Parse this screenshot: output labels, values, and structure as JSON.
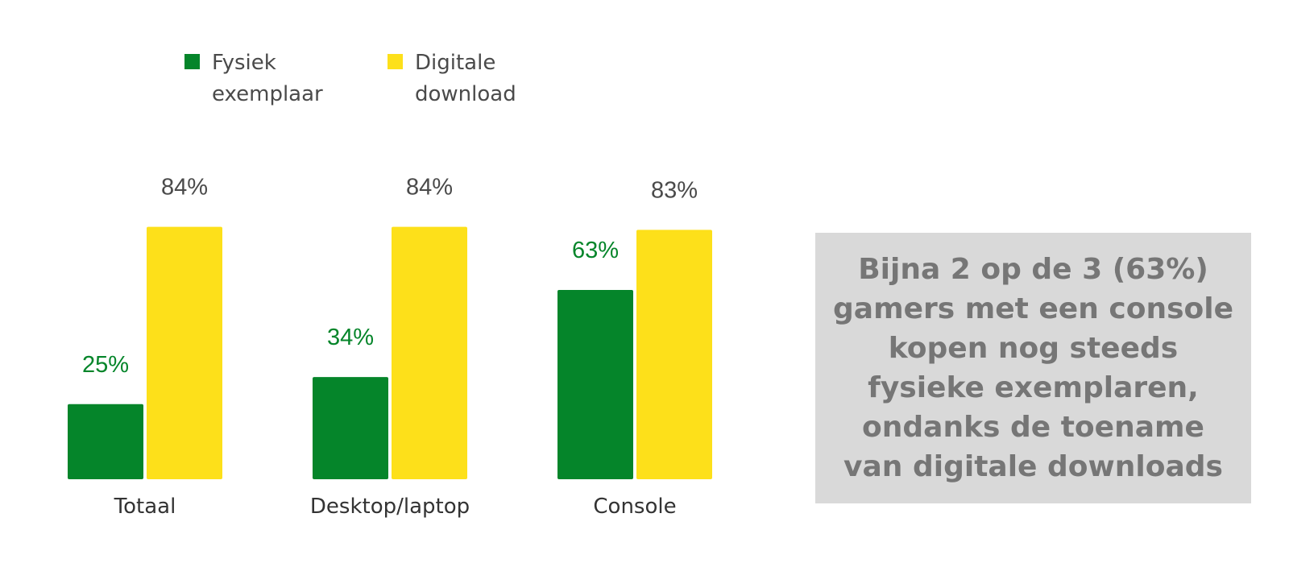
{
  "chart_data": {
    "type": "bar",
    "categories": [
      "Totaal",
      "Desktop/laptop",
      "Console"
    ],
    "series": [
      {
        "name": "Fysiek exemplaar",
        "name_lines": [
          "Fysiek",
          "exemplaar"
        ],
        "values": [
          25,
          34,
          63
        ],
        "labels": [
          "25%",
          "34%",
          "63%"
        ],
        "color": "#05852a",
        "label_color": "#05852a"
      },
      {
        "name": "Digitale download",
        "name_lines": [
          "Digitale",
          "download"
        ],
        "values": [
          84,
          84,
          83
        ],
        "labels": [
          "84%",
          "84%",
          "83%"
        ],
        "color": "#fde01a",
        "label_color": "#4a4a4a"
      }
    ],
    "ylim": [
      0,
      100
    ],
    "grid": false,
    "legend_position": "top-left"
  },
  "callout": {
    "lines": [
      "Bijna 2 op de 3 (63%)",
      "gamers met een console",
      "kopen nog steeds",
      "fysieke exemplaren,",
      "ondanks de toename",
      "van digitale downloads"
    ]
  }
}
